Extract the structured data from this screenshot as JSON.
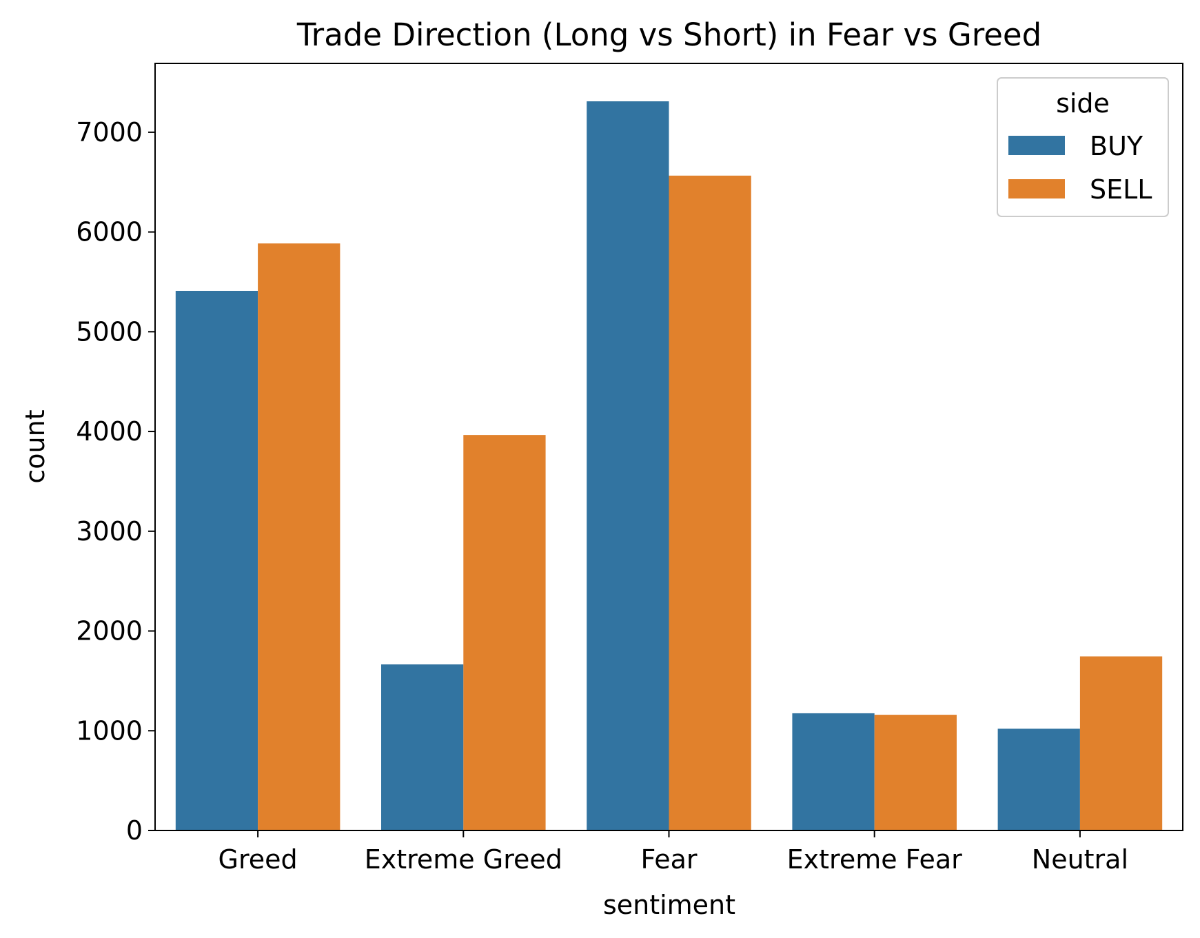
{
  "chart_data": {
    "type": "bar",
    "title": "Trade Direction (Long vs Short) in Fear vs Greed",
    "xlabel": "sentiment",
    "ylabel": "count",
    "categories": [
      "Greed",
      "Extreme Greed",
      "Fear",
      "Extreme Fear",
      "Neutral"
    ],
    "series": [
      {
        "name": "BUY",
        "color": "#3274a1",
        "values": [
          5410,
          1665,
          7310,
          1175,
          1020
        ]
      },
      {
        "name": "SELL",
        "color": "#e1812c",
        "values": [
          5885,
          3965,
          6565,
          1160,
          1745
        ]
      }
    ],
    "ylim": [
      0,
      7690
    ],
    "yticks": [
      0,
      1000,
      2000,
      3000,
      4000,
      5000,
      6000,
      7000
    ],
    "grid": false,
    "legend": {
      "title": "side",
      "position": "top-right"
    }
  }
}
